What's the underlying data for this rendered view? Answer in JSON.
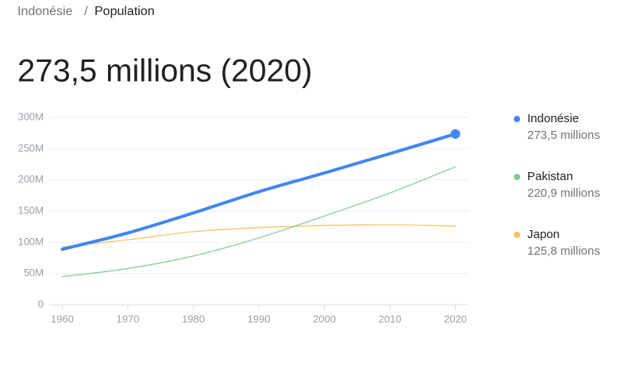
{
  "breadcrumb": {
    "parent": "Indonésie",
    "separator": "/",
    "current": "Population"
  },
  "chart_data": {
    "type": "line",
    "title": "273,5 millions (2020)",
    "x": [
      1960,
      1970,
      1980,
      1990,
      2000,
      2010,
      2020
    ],
    "series": [
      {
        "name": "Indonésie",
        "legend_value": "273,5 millions",
        "color": "#4285f4",
        "values": [
          88.7,
          115,
          147,
          181,
          211,
          242,
          273.5
        ]
      },
      {
        "name": "Pakistan",
        "legend_value": "220,9 millions",
        "color": "#81c995",
        "values": [
          45,
          58,
          78,
          107,
          142,
          179,
          220.9
        ]
      },
      {
        "name": "Japon",
        "legend_value": "125,8 millions",
        "color": "#f6c15a",
        "values": [
          92.5,
          104,
          117,
          123.5,
          126.8,
          128.1,
          125.8
        ]
      }
    ],
    "xlim": [
      1958,
      2022
    ],
    "xticks": [
      1960,
      1970,
      1980,
      1990,
      2000,
      2010,
      2020
    ],
    "ylim": [
      0,
      300
    ],
    "yticks": [
      0,
      {
        "value": 50,
        "label": "50M"
      },
      {
        "value": 100,
        "label": "100M"
      },
      {
        "value": 150,
        "label": "150M"
      },
      {
        "value": 200,
        "label": "200M"
      },
      {
        "value": 250,
        "label": "250M"
      },
      {
        "value": 300,
        "label": "300M"
      }
    ],
    "grid": true,
    "legend": "right"
  }
}
